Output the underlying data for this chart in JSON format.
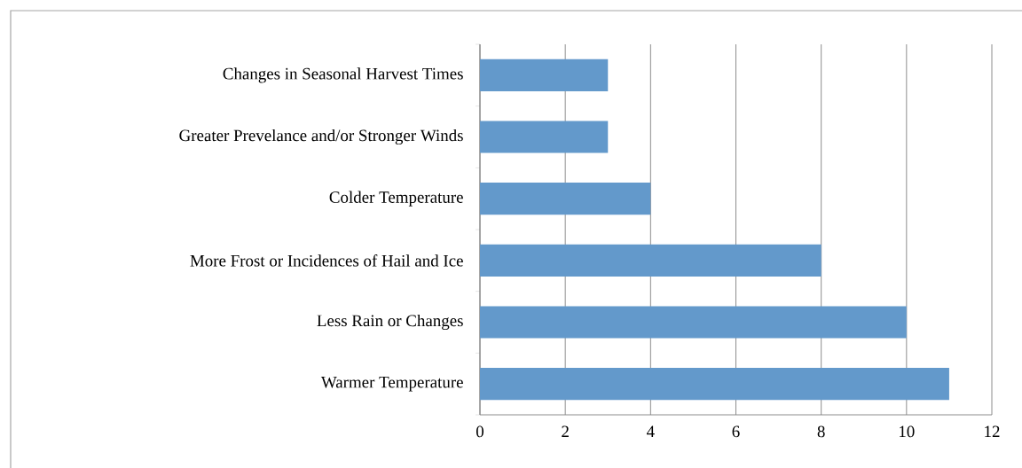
{
  "chart_data": {
    "type": "bar",
    "orientation": "horizontal",
    "categories": [
      "Changes in Seasonal Harvest Times",
      "Greater Prevelance and/or Stronger Winds",
      "Colder Temperature",
      "More Frost or Incidences of Hail and Ice",
      "Less Rain or Changes",
      "Warmer Temperature"
    ],
    "values": [
      3,
      3,
      4,
      8,
      10,
      11
    ],
    "color": "#6399cb",
    "xlim": [
      0,
      12
    ],
    "xticks": [
      0,
      2,
      4,
      6,
      8,
      10,
      12
    ],
    "grid": "x"
  }
}
